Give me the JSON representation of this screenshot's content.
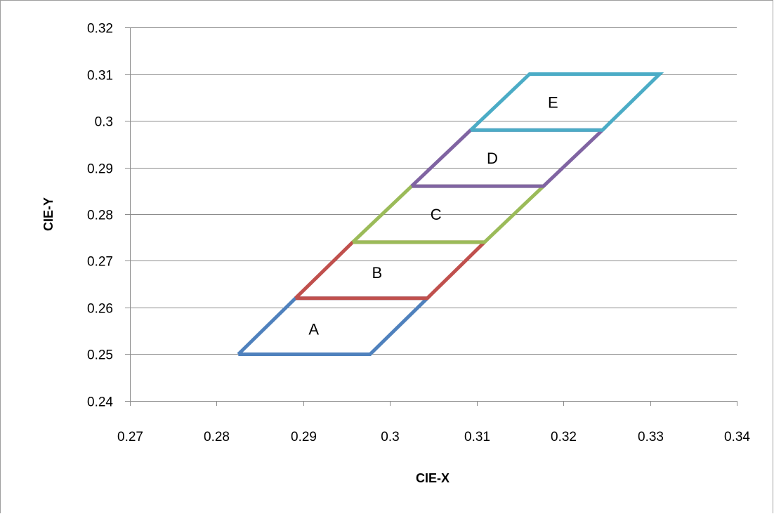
{
  "chart_data": {
    "type": "line",
    "title": "",
    "xlabel": "CIE-X",
    "ylabel": "CIE-Y",
    "xlim": [
      0.27,
      0.34
    ],
    "ylim": [
      0.24,
      0.32
    ],
    "xticks": [
      0.27,
      0.28,
      0.29,
      0.3,
      0.31,
      0.32,
      0.33,
      0.34
    ],
    "yticks": [
      0.24,
      0.25,
      0.26,
      0.27,
      0.28,
      0.29,
      0.3,
      0.31,
      0.32
    ],
    "xtick_labels": [
      "0.27",
      "0.28",
      "0.29",
      "0.3",
      "0.31",
      "0.32",
      "0.33",
      "0.34"
    ],
    "ytick_labels": [
      "0.24",
      "0.25",
      "0.26",
      "0.27",
      "0.28",
      "0.29",
      "0.3",
      "0.31",
      "0.32"
    ],
    "grid": "horizontal",
    "legend": "none",
    "series": [
      {
        "name": "A",
        "color": "#4f81bd",
        "points": [
          [
            0.2825,
            0.25
          ],
          [
            0.2977,
            0.25
          ],
          [
            0.3043,
            0.262
          ],
          [
            0.2891,
            0.262
          ],
          [
            0.2825,
            0.25
          ]
        ],
        "label_at": [
          0.2912,
          0.2554
        ]
      },
      {
        "name": "B",
        "color": "#c0504d",
        "points": [
          [
            0.2891,
            0.262
          ],
          [
            0.3043,
            0.262
          ],
          [
            0.3109,
            0.274
          ],
          [
            0.2957,
            0.274
          ],
          [
            0.2891,
            0.262
          ]
        ],
        "label_at": [
          0.2985,
          0.2675
        ]
      },
      {
        "name": "C",
        "color": "#9bbb59",
        "points": [
          [
            0.2957,
            0.274
          ],
          [
            0.3109,
            0.274
          ],
          [
            0.3177,
            0.286
          ],
          [
            0.3025,
            0.286
          ],
          [
            0.2957,
            0.274
          ]
        ],
        "label_at": [
          0.3053,
          0.28
        ]
      },
      {
        "name": "D",
        "color": "#8064a2",
        "points": [
          [
            0.3025,
            0.286
          ],
          [
            0.3177,
            0.286
          ],
          [
            0.3245,
            0.298
          ],
          [
            0.3093,
            0.298
          ],
          [
            0.3025,
            0.286
          ]
        ],
        "label_at": [
          0.3118,
          0.292
        ]
      },
      {
        "name": "E",
        "color": "#4bacc6",
        "points": [
          [
            0.3093,
            0.298
          ],
          [
            0.3245,
            0.298
          ],
          [
            0.3311,
            0.31
          ],
          [
            0.3161,
            0.31
          ],
          [
            0.3093,
            0.298
          ]
        ],
        "label_at": [
          0.3188,
          0.304
        ]
      }
    ]
  }
}
